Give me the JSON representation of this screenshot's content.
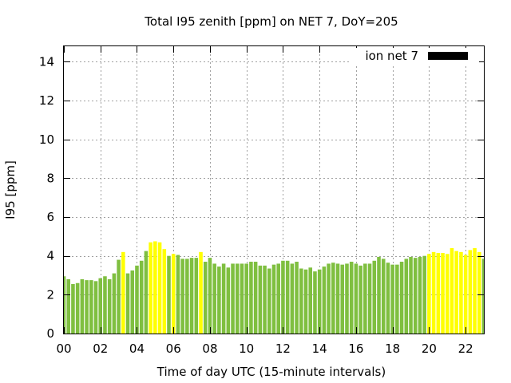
{
  "chart_data": {
    "type": "bar",
    "title": "Total I95 zenith [ppm] on NET 7, DoY=205",
    "xlabel": "Time of day UTC (15-minute intervals)",
    "ylabel": "I95 [ppm]",
    "xlim": [
      0,
      23
    ],
    "ylim": [
      0,
      14.8
    ],
    "xticks": [
      "00",
      "02",
      "04",
      "06",
      "08",
      "10",
      "12",
      "14",
      "16",
      "18",
      "20",
      "22"
    ],
    "yticks": [
      "0",
      "2",
      "4",
      "6",
      "8",
      "10",
      "12",
      "14"
    ],
    "grid": true,
    "legend_position": "top-right",
    "series": [
      {
        "name": "ion net 7",
        "color": "#000000",
        "values": [
          2.95,
          2.8,
          2.55,
          2.6,
          2.8,
          2.75,
          2.75,
          2.7,
          2.85,
          2.95,
          2.8,
          3.1,
          3.8,
          4.2,
          3.1,
          3.25,
          3.5,
          3.75,
          4.25,
          4.7,
          4.75,
          4.7,
          4.35,
          4.0,
          4.1,
          4.05,
          3.85,
          3.85,
          3.9,
          3.9,
          4.2,
          3.7,
          3.9,
          3.6,
          3.45,
          3.6,
          3.4,
          3.6,
          3.6,
          3.6,
          3.6,
          3.7,
          3.7,
          3.5,
          3.5,
          3.35,
          3.55,
          3.6,
          3.75,
          3.75,
          3.6,
          3.7,
          3.35,
          3.3,
          3.4,
          3.2,
          3.3,
          3.45,
          3.6,
          3.65,
          3.6,
          3.55,
          3.6,
          3.7,
          3.6,
          3.5,
          3.6,
          3.6,
          3.75,
          3.95,
          3.85,
          3.65,
          3.55,
          3.55,
          3.7,
          3.85,
          3.95,
          3.9,
          3.95,
          4.0,
          4.1,
          4.2,
          4.15,
          4.15,
          4.1,
          4.4,
          4.25,
          4.2,
          4.05,
          4.3,
          4.4,
          4.2,
          3.85
        ],
        "highlighted": [
          13,
          19,
          20,
          21,
          22,
          24,
          30,
          80,
          81,
          82,
          83,
          84,
          85,
          86,
          87,
          88,
          89,
          90,
          91
        ]
      }
    ],
    "colors": {
      "normal": "#7fbf40",
      "highlight": "#ffff00",
      "grid": "#a0a0a0"
    }
  }
}
